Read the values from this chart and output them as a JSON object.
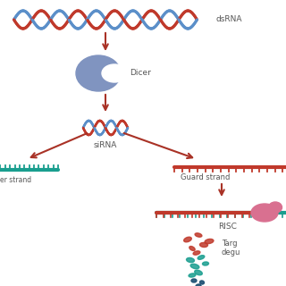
{
  "background_color": "#ffffff",
  "text_color": "#555555",
  "red_color": "#c0392b",
  "blue_color": "#5b8fc9",
  "teal_color": "#1a9e8f",
  "dicer_color": "#8094c0",
  "risc_color": "#d97090",
  "arrow_color": "#a93226",
  "dsrna_label": "dsRNA",
  "dicer_label": "Dicer",
  "sirna_label": "siRNA",
  "guard_strand_label": "Guard strand",
  "risc_label": "RISC",
  "passenger_strand_label": "er strand",
  "target_label1": "Targ",
  "target_label2": "degu"
}
